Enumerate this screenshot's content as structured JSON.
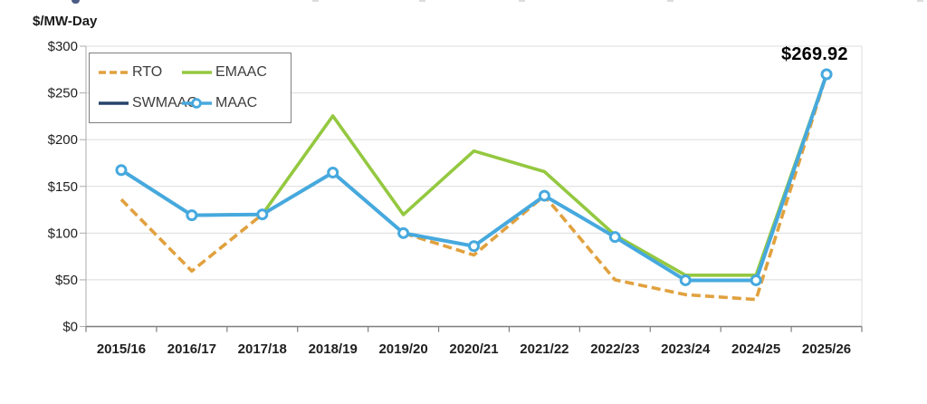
{
  "chart_data": {
    "type": "line",
    "title": "",
    "ylabel": "$/MW-Day",
    "xlabel": "",
    "ylim": [
      0,
      300
    ],
    "grid": "horizontal",
    "legend_position": "top-left-inside",
    "categories": [
      "2015/16",
      "2016/17",
      "2017/18",
      "2018/19",
      "2019/20",
      "2020/21",
      "2021/22",
      "2022/23",
      "2023/24",
      "2024/25",
      "2025/26"
    ],
    "y_ticks": [
      {
        "label": "$0",
        "value": 0
      },
      {
        "label": "$50",
        "value": 50
      },
      {
        "label": "$100",
        "value": 100
      },
      {
        "label": "$150",
        "value": 150
      },
      {
        "label": "$200",
        "value": 200
      },
      {
        "label": "$250",
        "value": 250
      },
      {
        "label": "$300",
        "value": 300
      }
    ],
    "series": [
      {
        "name": "RTO",
        "color": "#E1A13E",
        "style": "dashed",
        "marker": false,
        "values": [
          136.0,
          59.37,
          120.0,
          164.77,
          100.0,
          76.53,
          140.0,
          50.0,
          34.13,
          28.92,
          269.92
        ]
      },
      {
        "name": "EMAAC",
        "color": "#94C840",
        "style": "solid",
        "marker": false,
        "values": [
          167.46,
          119.13,
          120.0,
          225.42,
          119.77,
          187.87,
          165.73,
          97.86,
          54.95,
          54.95,
          269.92
        ]
      },
      {
        "name": "SWMAAC",
        "color": "#27436B",
        "style": "solid",
        "marker": false,
        "values": [
          167.46,
          119.13,
          120.0,
          164.77,
          100.0,
          86.04,
          140.0,
          95.79,
          49.49,
          49.49,
          269.92
        ]
      },
      {
        "name": "MAAC",
        "color": "#46A9DE",
        "style": "solid",
        "marker": true,
        "values": [
          167.46,
          119.13,
          120.0,
          164.77,
          100.0,
          86.04,
          140.0,
          95.79,
          49.49,
          49.49,
          269.92
        ]
      }
    ],
    "annotation": {
      "text": "$269.92",
      "category": "2025/26",
      "value": 269.92
    },
    "colors": {
      "gridline": "#dcdcdc",
      "y_axis": "#ababab",
      "x_axis": "#7f7f7f",
      "tick_label": "#1f1f1f",
      "marker_fill": "#ffffff"
    }
  }
}
